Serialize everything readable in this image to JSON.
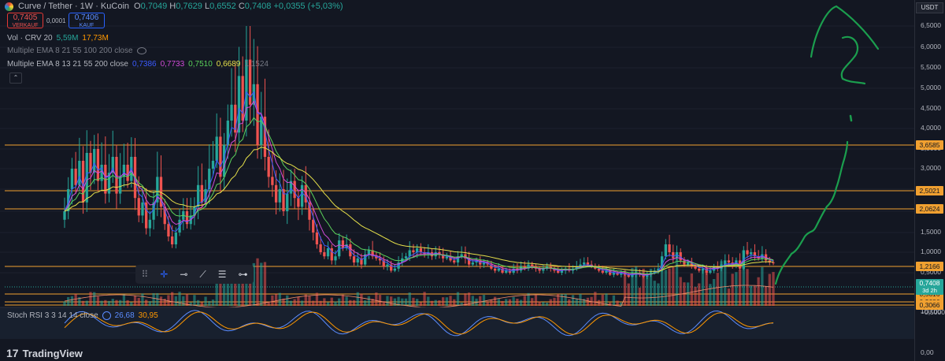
{
  "header": {
    "symbol": "Curve / Tether · 1W · KuCoin",
    "o_label": "O",
    "o": "0,7049",
    "h_label": "H",
    "h": "0,7629",
    "l_label": "L",
    "l": "0,6552",
    "c_label": "C",
    "c": "0,7408",
    "change": "+0,0355 (+5,03%)"
  },
  "trade": {
    "sell_price": "0,7405",
    "sell_label": "VERKAUF",
    "spread": "0,0001",
    "buy_price": "0,7406",
    "buy_label": "KAUF"
  },
  "indicators": {
    "vol_label": "Vol · CRV 20",
    "vol_a": "5,59M",
    "vol_b": "17,73M",
    "ema1_label": "Multiple EMA 8 21 55 100 200 close",
    "ema2_label": "Multiple EMA 8 13 21 55 200 close",
    "ema2_values": [
      "0,7386",
      "0,7733",
      "0,7510",
      "0,6689",
      "1,1524"
    ]
  },
  "axis": {
    "currency": "USDT",
    "ticks": [
      "6,5000",
      "6,0000",
      "5,5000",
      "5,0000",
      "4,5000",
      "4,0000",
      "3,5000",
      "3,0000",
      "2,5000",
      "2,0000",
      "1,5000",
      "1,0000",
      "0,5000",
      "−0,5000"
    ],
    "current_price": "0,7408",
    "countdown": "3d 2h",
    "levels": [
      "3,6585",
      "2,5021",
      "2,0624",
      "1,2166",
      "0,5616",
      "0,3686",
      "0,3066"
    ],
    "rsi_ticks": [
      "100,00",
      "0,00"
    ]
  },
  "rsi": {
    "label": "Stoch RSI 3 3 14 14 close",
    "k": "26,68",
    "d": "30,95"
  },
  "brand": {
    "name": "TradingView"
  },
  "colors": {
    "up": "#26a69a",
    "down": "#ef5350",
    "level": "#f0a030",
    "ema_yellow": "#e6e04a",
    "ema_green": "#5bd15b",
    "ema_magenta": "#d14bd8",
    "ema_blue": "#3b5bff",
    "drawing": "#1b9e4e"
  },
  "chart_data": {
    "type": "candlestick",
    "interval": "1W",
    "last_close": 0.7408,
    "horizontal_levels": [
      3.6585,
      2.5021,
      2.0624,
      1.2166,
      0.5616,
      0.3686,
      0.3066
    ],
    "closes": [
      2.0,
      2.5,
      3.0,
      2.6,
      3.2,
      2.2,
      3.4,
      2.9,
      3.5,
      2.7,
      3.1,
      2.4,
      2.9,
      3.3,
      2.4,
      2.8,
      3.1,
      2.7,
      3.3,
      2.3,
      1.9,
      2.2,
      1.6,
      1.8,
      2.2,
      2.8,
      2.1,
      1.7,
      1.4,
      1.2,
      1.5,
      1.8,
      2.0,
      1.7,
      1.9,
      2.1,
      2.6,
      2.2,
      2.5,
      3.0,
      3.2,
      3.8,
      2.8,
      3.6,
      4.2,
      4.6,
      3.9,
      5.3,
      4.2,
      5.7,
      4.6,
      5.1,
      3.6,
      4.3,
      3.3,
      2.8,
      2.6,
      2.2,
      2.5,
      2.0,
      2.4,
      2.7,
      2.3,
      2.1,
      2.6,
      2.2,
      1.8,
      1.5,
      1.2,
      1.0,
      0.9,
      1.1,
      0.8,
      0.9,
      1.3,
      1.1,
      1.2,
      0.9,
      0.75,
      0.85,
      0.7,
      0.95,
      1.05,
      0.9,
      0.85,
      0.8,
      0.65,
      0.7,
      0.55,
      0.6,
      0.75,
      0.85,
      0.9,
      1.05,
      1.0,
      1.1,
      1.0,
      0.95,
      1.0,
      0.9,
      1.0,
      0.95,
      0.85,
      0.9,
      0.8,
      0.75,
      0.9,
      0.95,
      0.85,
      0.7,
      0.75,
      0.8,
      0.7,
      0.75,
      0.7,
      0.6,
      0.55,
      0.6,
      0.5,
      0.55,
      0.5,
      0.6,
      0.55,
      0.65,
      0.6,
      0.7,
      0.65,
      0.6,
      0.55,
      0.6,
      0.65,
      0.6,
      0.55,
      0.5,
      0.55,
      0.6,
      0.55,
      0.6,
      0.65,
      0.7,
      0.75,
      0.7,
      0.65,
      0.6,
      0.55,
      0.5,
      0.55,
      0.45,
      0.5,
      0.45,
      0.5,
      0.45,
      0.4,
      0.45,
      0.5,
      0.45,
      0.4,
      0.45,
      0.5,
      0.55,
      0.6,
      0.9,
      1.2,
      1.0,
      0.85,
      1.0,
      0.8,
      0.7,
      0.75,
      0.65,
      0.6,
      0.55,
      0.6,
      0.5,
      0.55,
      0.65,
      0.6,
      0.7,
      0.8,
      0.75,
      0.7,
      0.8,
      0.6,
      1.05,
      0.95,
      1.0,
      0.9,
      0.85,
      0.95,
      0.8,
      0.75,
      0.74
    ],
    "volume_series": "shown",
    "stoch_rsi": {
      "k": 26.68,
      "d": 30.95,
      "range": [
        0,
        100
      ]
    }
  }
}
